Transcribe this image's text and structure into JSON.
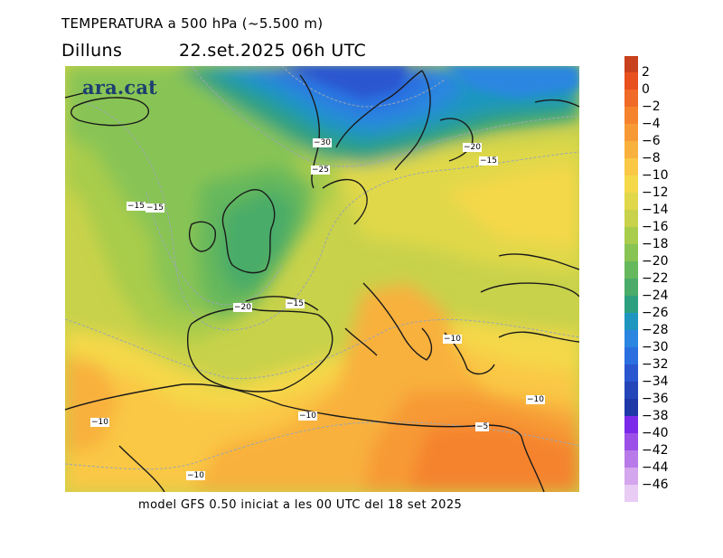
{
  "header": {
    "title": "TEMPERATURA a 500 hPa (~5.500 m)",
    "day": "Dilluns",
    "date_time": "22.set.2025 06h UTC"
  },
  "logo": {
    "text": "ara.cat"
  },
  "footer": {
    "text": "model GFS 0.50 iniciat a les 00 UTC del 18 set 2025"
  },
  "colorbar": {
    "labels": [
      "2",
      "0",
      "−2",
      "−4",
      "−6",
      "−8",
      "−10",
      "−12",
      "−14",
      "−16",
      "−18",
      "−20",
      "−22",
      "−24",
      "−26",
      "−28",
      "−30",
      "−32",
      "−34",
      "−36",
      "−38",
      "−40",
      "−42",
      "−44",
      "−46"
    ],
    "colors": [
      "#c8401c",
      "#e8501e",
      "#f06a28",
      "#f5832e",
      "#f79a35",
      "#f8b13c",
      "#fac845",
      "#f5d848",
      "#e0d84a",
      "#c8d24a",
      "#a8cc4c",
      "#88c454",
      "#66b85c",
      "#4aac68",
      "#2ea080",
      "#1e96c0",
      "#2a86e0",
      "#2a6ee0",
      "#2a56d0",
      "#2446b8",
      "#1e38a8",
      "#7a2ae8",
      "#9c50e8",
      "#b87ae8",
      "#d4a6ee",
      "#e8ccf4"
    ]
  },
  "contour_labels": [
    "−30",
    "−25",
    "−20",
    "−15",
    "−15",
    "−15",
    "−20",
    "−15",
    "−10",
    "−10",
    "−10",
    "−10",
    "−5",
    "−10"
  ]
}
